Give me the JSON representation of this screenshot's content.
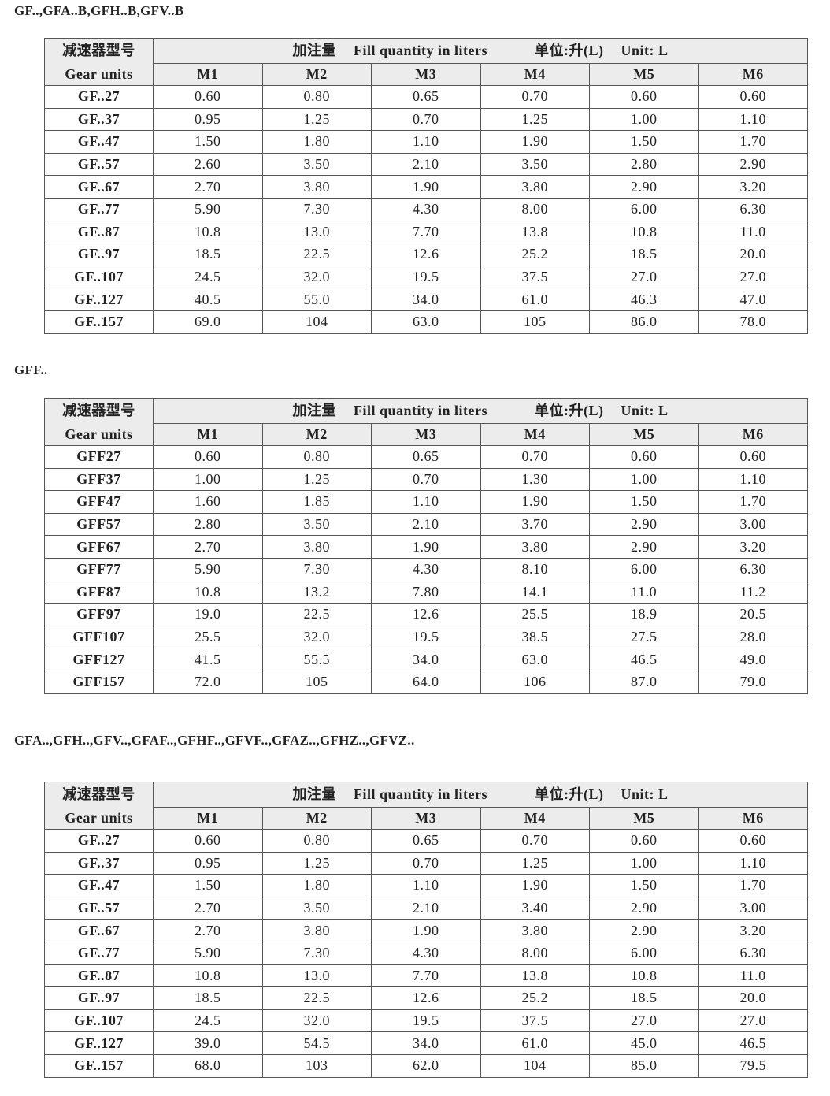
{
  "header": {
    "corner_cn": "减速器型号",
    "corner_en": "Gear units",
    "fill_cn": "加注量",
    "fill_en": "Fill quantity in liters",
    "unit_cn": "单位:升(L)",
    "unit_en": "Unit: L",
    "columns": [
      "M1",
      "M2",
      "M3",
      "M4",
      "M5",
      "M6"
    ]
  },
  "sections": [
    {
      "title": "GF..,GFA..B,GFH..B,GFV..B",
      "rows": [
        {
          "unit": "GF..27",
          "values": [
            "0.60",
            "0.80",
            "0.65",
            "0.70",
            "0.60",
            "0.60"
          ]
        },
        {
          "unit": "GF..37",
          "values": [
            "0.95",
            "1.25",
            "0.70",
            "1.25",
            "1.00",
            "1.10"
          ]
        },
        {
          "unit": "GF..47",
          "values": [
            "1.50",
            "1.80",
            "1.10",
            "1.90",
            "1.50",
            "1.70"
          ]
        },
        {
          "unit": "GF..57",
          "values": [
            "2.60",
            "3.50",
            "2.10",
            "3.50",
            "2.80",
            "2.90"
          ]
        },
        {
          "unit": "GF..67",
          "values": [
            "2.70",
            "3.80",
            "1.90",
            "3.80",
            "2.90",
            "3.20"
          ]
        },
        {
          "unit": "GF..77",
          "values": [
            "5.90",
            "7.30",
            "4.30",
            "8.00",
            "6.00",
            "6.30"
          ]
        },
        {
          "unit": "GF..87",
          "values": [
            "10.8",
            "13.0",
            "7.70",
            "13.8",
            "10.8",
            "11.0"
          ]
        },
        {
          "unit": "GF..97",
          "values": [
            "18.5",
            "22.5",
            "12.6",
            "25.2",
            "18.5",
            "20.0"
          ]
        },
        {
          "unit": "GF..107",
          "values": [
            "24.5",
            "32.0",
            "19.5",
            "37.5",
            "27.0",
            "27.0"
          ]
        },
        {
          "unit": "GF..127",
          "values": [
            "40.5",
            "55.0",
            "34.0",
            "61.0",
            "46.3",
            "47.0"
          ]
        },
        {
          "unit": "GF..157",
          "values": [
            "69.0",
            "104",
            "63.0",
            "105",
            "86.0",
            "78.0"
          ]
        }
      ]
    },
    {
      "title": "GFF..",
      "rows": [
        {
          "unit": "GFF27",
          "values": [
            "0.60",
            "0.80",
            "0.65",
            "0.70",
            "0.60",
            "0.60"
          ]
        },
        {
          "unit": "GFF37",
          "values": [
            "1.00",
            "1.25",
            "0.70",
            "1.30",
            "1.00",
            "1.10"
          ]
        },
        {
          "unit": "GFF47",
          "values": [
            "1.60",
            "1.85",
            "1.10",
            "1.90",
            "1.50",
            "1.70"
          ]
        },
        {
          "unit": "GFF57",
          "values": [
            "2.80",
            "3.50",
            "2.10",
            "3.70",
            "2.90",
            "3.00"
          ]
        },
        {
          "unit": "GFF67",
          "values": [
            "2.70",
            "3.80",
            "1.90",
            "3.80",
            "2.90",
            "3.20"
          ]
        },
        {
          "unit": "GFF77",
          "values": [
            "5.90",
            "7.30",
            "4.30",
            "8.10",
            "6.00",
            "6.30"
          ]
        },
        {
          "unit": "GFF87",
          "values": [
            "10.8",
            "13.2",
            "7.80",
            "14.1",
            "11.0",
            "11.2"
          ]
        },
        {
          "unit": "GFF97",
          "values": [
            "19.0",
            "22.5",
            "12.6",
            "25.5",
            "18.9",
            "20.5"
          ]
        },
        {
          "unit": "GFF107",
          "values": [
            "25.5",
            "32.0",
            "19.5",
            "38.5",
            "27.5",
            "28.0"
          ]
        },
        {
          "unit": "GFF127",
          "values": [
            "41.5",
            "55.5",
            "34.0",
            "63.0",
            "46.5",
            "49.0"
          ]
        },
        {
          "unit": "GFF157",
          "values": [
            "72.0",
            "105",
            "64.0",
            "106",
            "87.0",
            "79.0"
          ]
        }
      ]
    },
    {
      "title": "GFA..,GFH..,GFV..,GFAF..,GFHF..,GFVF..,GFAZ..,GFHZ..,GFVZ..",
      "rows": [
        {
          "unit": "GF..27",
          "values": [
            "0.60",
            "0.80",
            "0.65",
            "0.70",
            "0.60",
            "0.60"
          ]
        },
        {
          "unit": "GF..37",
          "values": [
            "0.95",
            "1.25",
            "0.70",
            "1.25",
            "1.00",
            "1.10"
          ]
        },
        {
          "unit": "GF..47",
          "values": [
            "1.50",
            "1.80",
            "1.10",
            "1.90",
            "1.50",
            "1.70"
          ]
        },
        {
          "unit": "GF..57",
          "values": [
            "2.70",
            "3.50",
            "2.10",
            "3.40",
            "2.90",
            "3.00"
          ]
        },
        {
          "unit": "GF..67",
          "values": [
            "2.70",
            "3.80",
            "1.90",
            "3.80",
            "2.90",
            "3.20"
          ]
        },
        {
          "unit": "GF..77",
          "values": [
            "5.90",
            "7.30",
            "4.30",
            "8.00",
            "6.00",
            "6.30"
          ]
        },
        {
          "unit": "GF..87",
          "values": [
            "10.8",
            "13.0",
            "7.70",
            "13.8",
            "10.8",
            "11.0"
          ]
        },
        {
          "unit": "GF..97",
          "values": [
            "18.5",
            "22.5",
            "12.6",
            "25.2",
            "18.5",
            "20.0"
          ]
        },
        {
          "unit": "GF..107",
          "values": [
            "24.5",
            "32.0",
            "19.5",
            "37.5",
            "27.0",
            "27.0"
          ]
        },
        {
          "unit": "GF..127",
          "values": [
            "39.0",
            "54.5",
            "34.0",
            "61.0",
            "45.0",
            "46.5"
          ]
        },
        {
          "unit": "GF..157",
          "values": [
            "68.0",
            "103",
            "62.0",
            "104",
            "85.0",
            "79.5"
          ]
        }
      ]
    }
  ]
}
